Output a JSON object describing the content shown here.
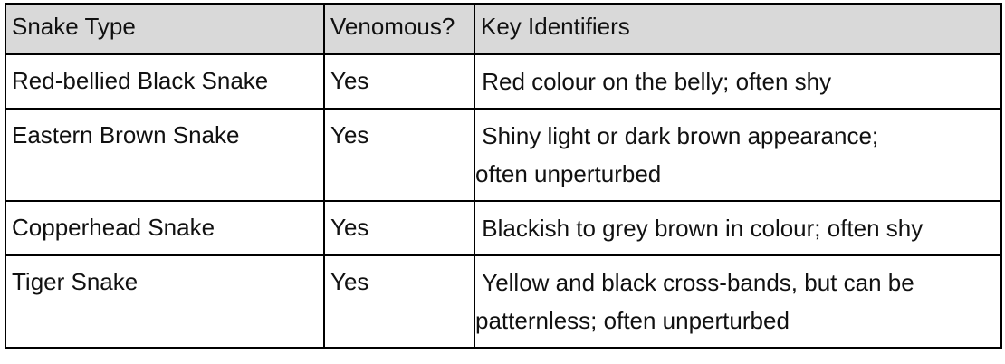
{
  "table": {
    "headers": [
      "Snake Type",
      "Venomous?",
      "Key Identifiers"
    ],
    "rows": [
      {
        "snake_type": "Red-bellied Black Snake",
        "venomous": "Yes",
        "identifiers": " Red colour on the belly; often shy"
      },
      {
        "snake_type": "Eastern Brown Snake",
        "venomous": "Yes",
        "identifiers": " Shiny light or dark brown appearance;\noften unperturbed"
      },
      {
        "snake_type": "Copperhead Snake",
        "venomous": "Yes",
        "identifiers": " Blackish to grey brown in colour; often shy"
      },
      {
        "snake_type": "Tiger Snake",
        "venomous": "Yes",
        "identifiers": " Yellow and black cross-bands, but can be\npatternless; often unperturbed"
      }
    ]
  }
}
